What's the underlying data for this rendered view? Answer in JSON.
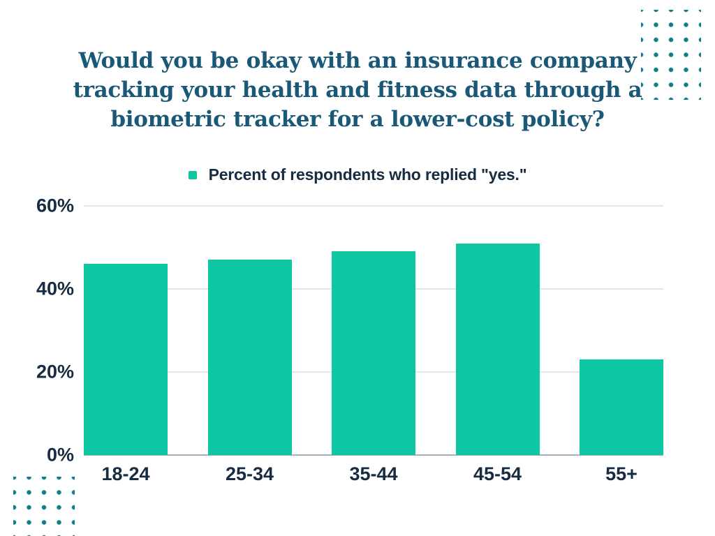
{
  "page": {
    "background": "#ffffff"
  },
  "title": {
    "text": "Would you be okay with an insurance company tracking your health and fitness data through a biometric tracker for a lower-cost policy?",
    "lines": [
      "Would you be okay with an insurance company",
      "tracking your health and fitness data through a",
      "biometric tracker for a lower-cost policy?"
    ],
    "color": "#1a5878"
  },
  "legend": {
    "label": "Percent of respondents who replied \"yes.\"",
    "marker_color": "#0cc7a2"
  },
  "chart_data": {
    "type": "bar",
    "title": "Would you be okay with an insurance company tracking your health and fitness data through a biometric tracker for a lower-cost policy?",
    "series_name": "Percent of respondents who replied \"yes.\"",
    "categories": [
      "18-24",
      "25-34",
      "35-44",
      "45-54",
      "55+"
    ],
    "values": [
      46,
      47,
      49,
      51,
      23
    ],
    "unit": "%",
    "xlabel": "",
    "ylabel": "",
    "ylim": [
      0,
      60
    ],
    "yticks": [
      {
        "value": 60,
        "label": "60%"
      },
      {
        "value": 40,
        "label": "40%"
      },
      {
        "value": 20,
        "label": "20%"
      },
      {
        "value": 0,
        "label": "0%"
      }
    ],
    "grid": true,
    "legend_position": "top-center",
    "bar_color": "#0cc7a2",
    "gridline_color": "#e3e5e9",
    "axis_line_color": "#a9aeb8",
    "label_color": "#172b42"
  },
  "decor": {
    "dot_color": "#0f7d8c",
    "top_right_dots": {
      "columns": 4,
      "rows": 6
    },
    "bottom_left_dots": {
      "columns": 4,
      "rows": 4
    }
  }
}
